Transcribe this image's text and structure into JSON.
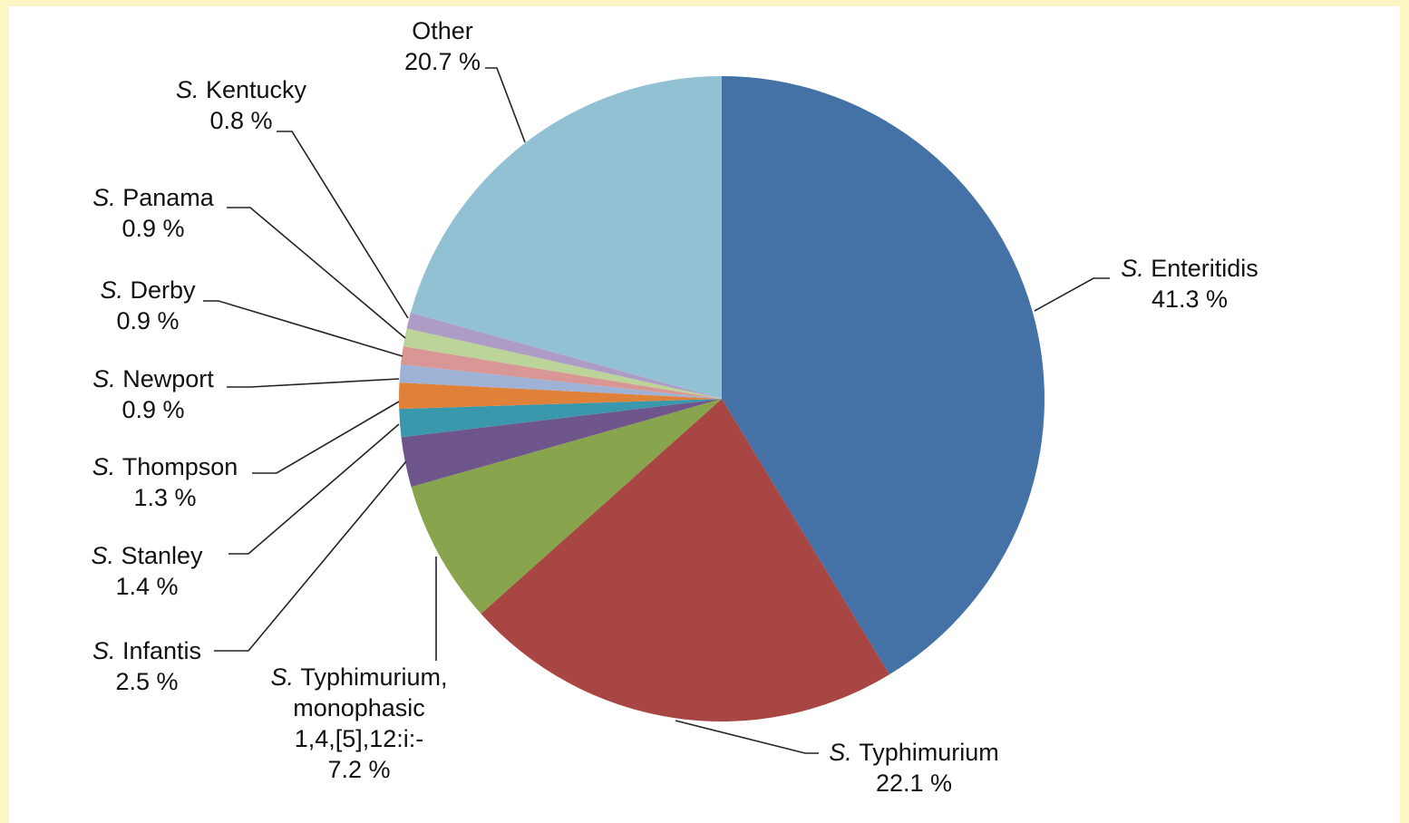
{
  "chart_data": {
    "type": "pie",
    "title": "",
    "start_angle_deg": 0,
    "direction": "clockwise",
    "slices": [
      {
        "genus": "S.",
        "name": "Enteritidis",
        "value": 41.3,
        "value_label": "41.3 %",
        "color": "#4472a6"
      },
      {
        "genus": "S.",
        "name": "Typhimurium",
        "value": 22.1,
        "value_label": "22.1 %",
        "color": "#a84643"
      },
      {
        "genus": "S.",
        "name_lines": [
          "Typhimurium,",
          "monophasic",
          "1,4,[5],12:i:-"
        ],
        "value": 7.2,
        "value_label": "7.2 %",
        "color": "#88a44c"
      },
      {
        "genus": "S.",
        "name": "Infantis",
        "value": 2.5,
        "value_label": "2.5 %",
        "color": "#6e558c"
      },
      {
        "genus": "S.",
        "name": "Stanley",
        "value": 1.4,
        "value_label": "1.4 %",
        "color": "#3a98ad"
      },
      {
        "genus": "S.",
        "name": "Thompson",
        "value": 1.3,
        "value_label": "1.3 %",
        "color": "#e0813a"
      },
      {
        "genus": "S.",
        "name": "Newport",
        "value": 0.9,
        "value_label": "0.9 %",
        "color": "#9eb2d6"
      },
      {
        "genus": "S.",
        "name": "Derby",
        "value": 0.9,
        "value_label": "0.9 %",
        "color": "#d89695"
      },
      {
        "genus": "S.",
        "name": "Panama",
        "value": 0.9,
        "value_label": "0.9 %",
        "color": "#bcd399"
      },
      {
        "genus": "S.",
        "name": "Kentucky",
        "value": 0.8,
        "value_label": "0.8 %",
        "color": "#ad9cc5"
      },
      {
        "genus": "",
        "name": "Other",
        "value": 20.7,
        "value_label": "20.7 %",
        "color": "#93c1d4"
      }
    ]
  }
}
